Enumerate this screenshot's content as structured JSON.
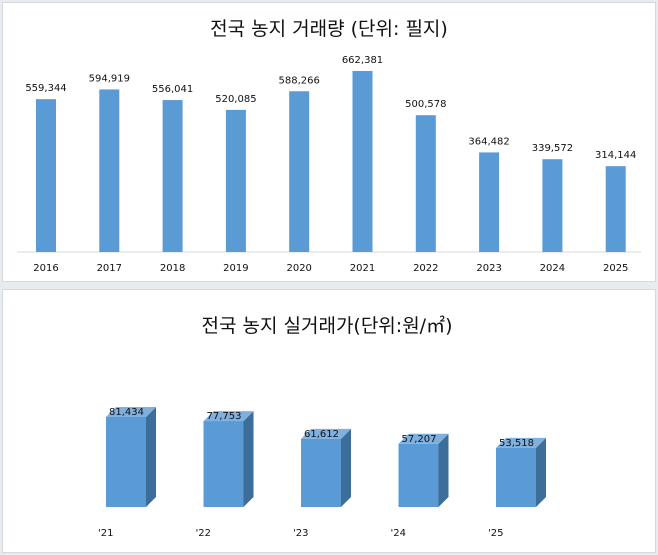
{
  "chart_data": [
    {
      "type": "bar",
      "title": "전국 농지 거래량 (단위: 필지)",
      "categories": [
        "2016",
        "2017",
        "2018",
        "2019",
        "2020",
        "2021",
        "2022",
        "2023",
        "2024",
        "2025"
      ],
      "values": [
        559344,
        594919,
        556041,
        520085,
        588266,
        662381,
        500578,
        364482,
        339572,
        314144
      ],
      "value_labels": [
        "559,344",
        "594,919",
        "556,041",
        "520,085",
        "588,266",
        "662,381",
        "500,578",
        "364,482",
        "339,572",
        "314,144"
      ],
      "bar_color": "#5b9bd5",
      "grid": false
    },
    {
      "type": "bar",
      "style": "3d",
      "title": "전국 농지 실거래가(단위:원/㎡)",
      "categories": [
        "'21",
        "'22",
        "'23",
        "'24",
        "'25"
      ],
      "values": [
        81434,
        77753,
        61612,
        57207,
        53518
      ],
      "value_labels": [
        "81,434",
        "77,753",
        "61,612",
        "57,207",
        "53,518"
      ],
      "bar_color": "#5b9bd5",
      "grid": false
    }
  ]
}
